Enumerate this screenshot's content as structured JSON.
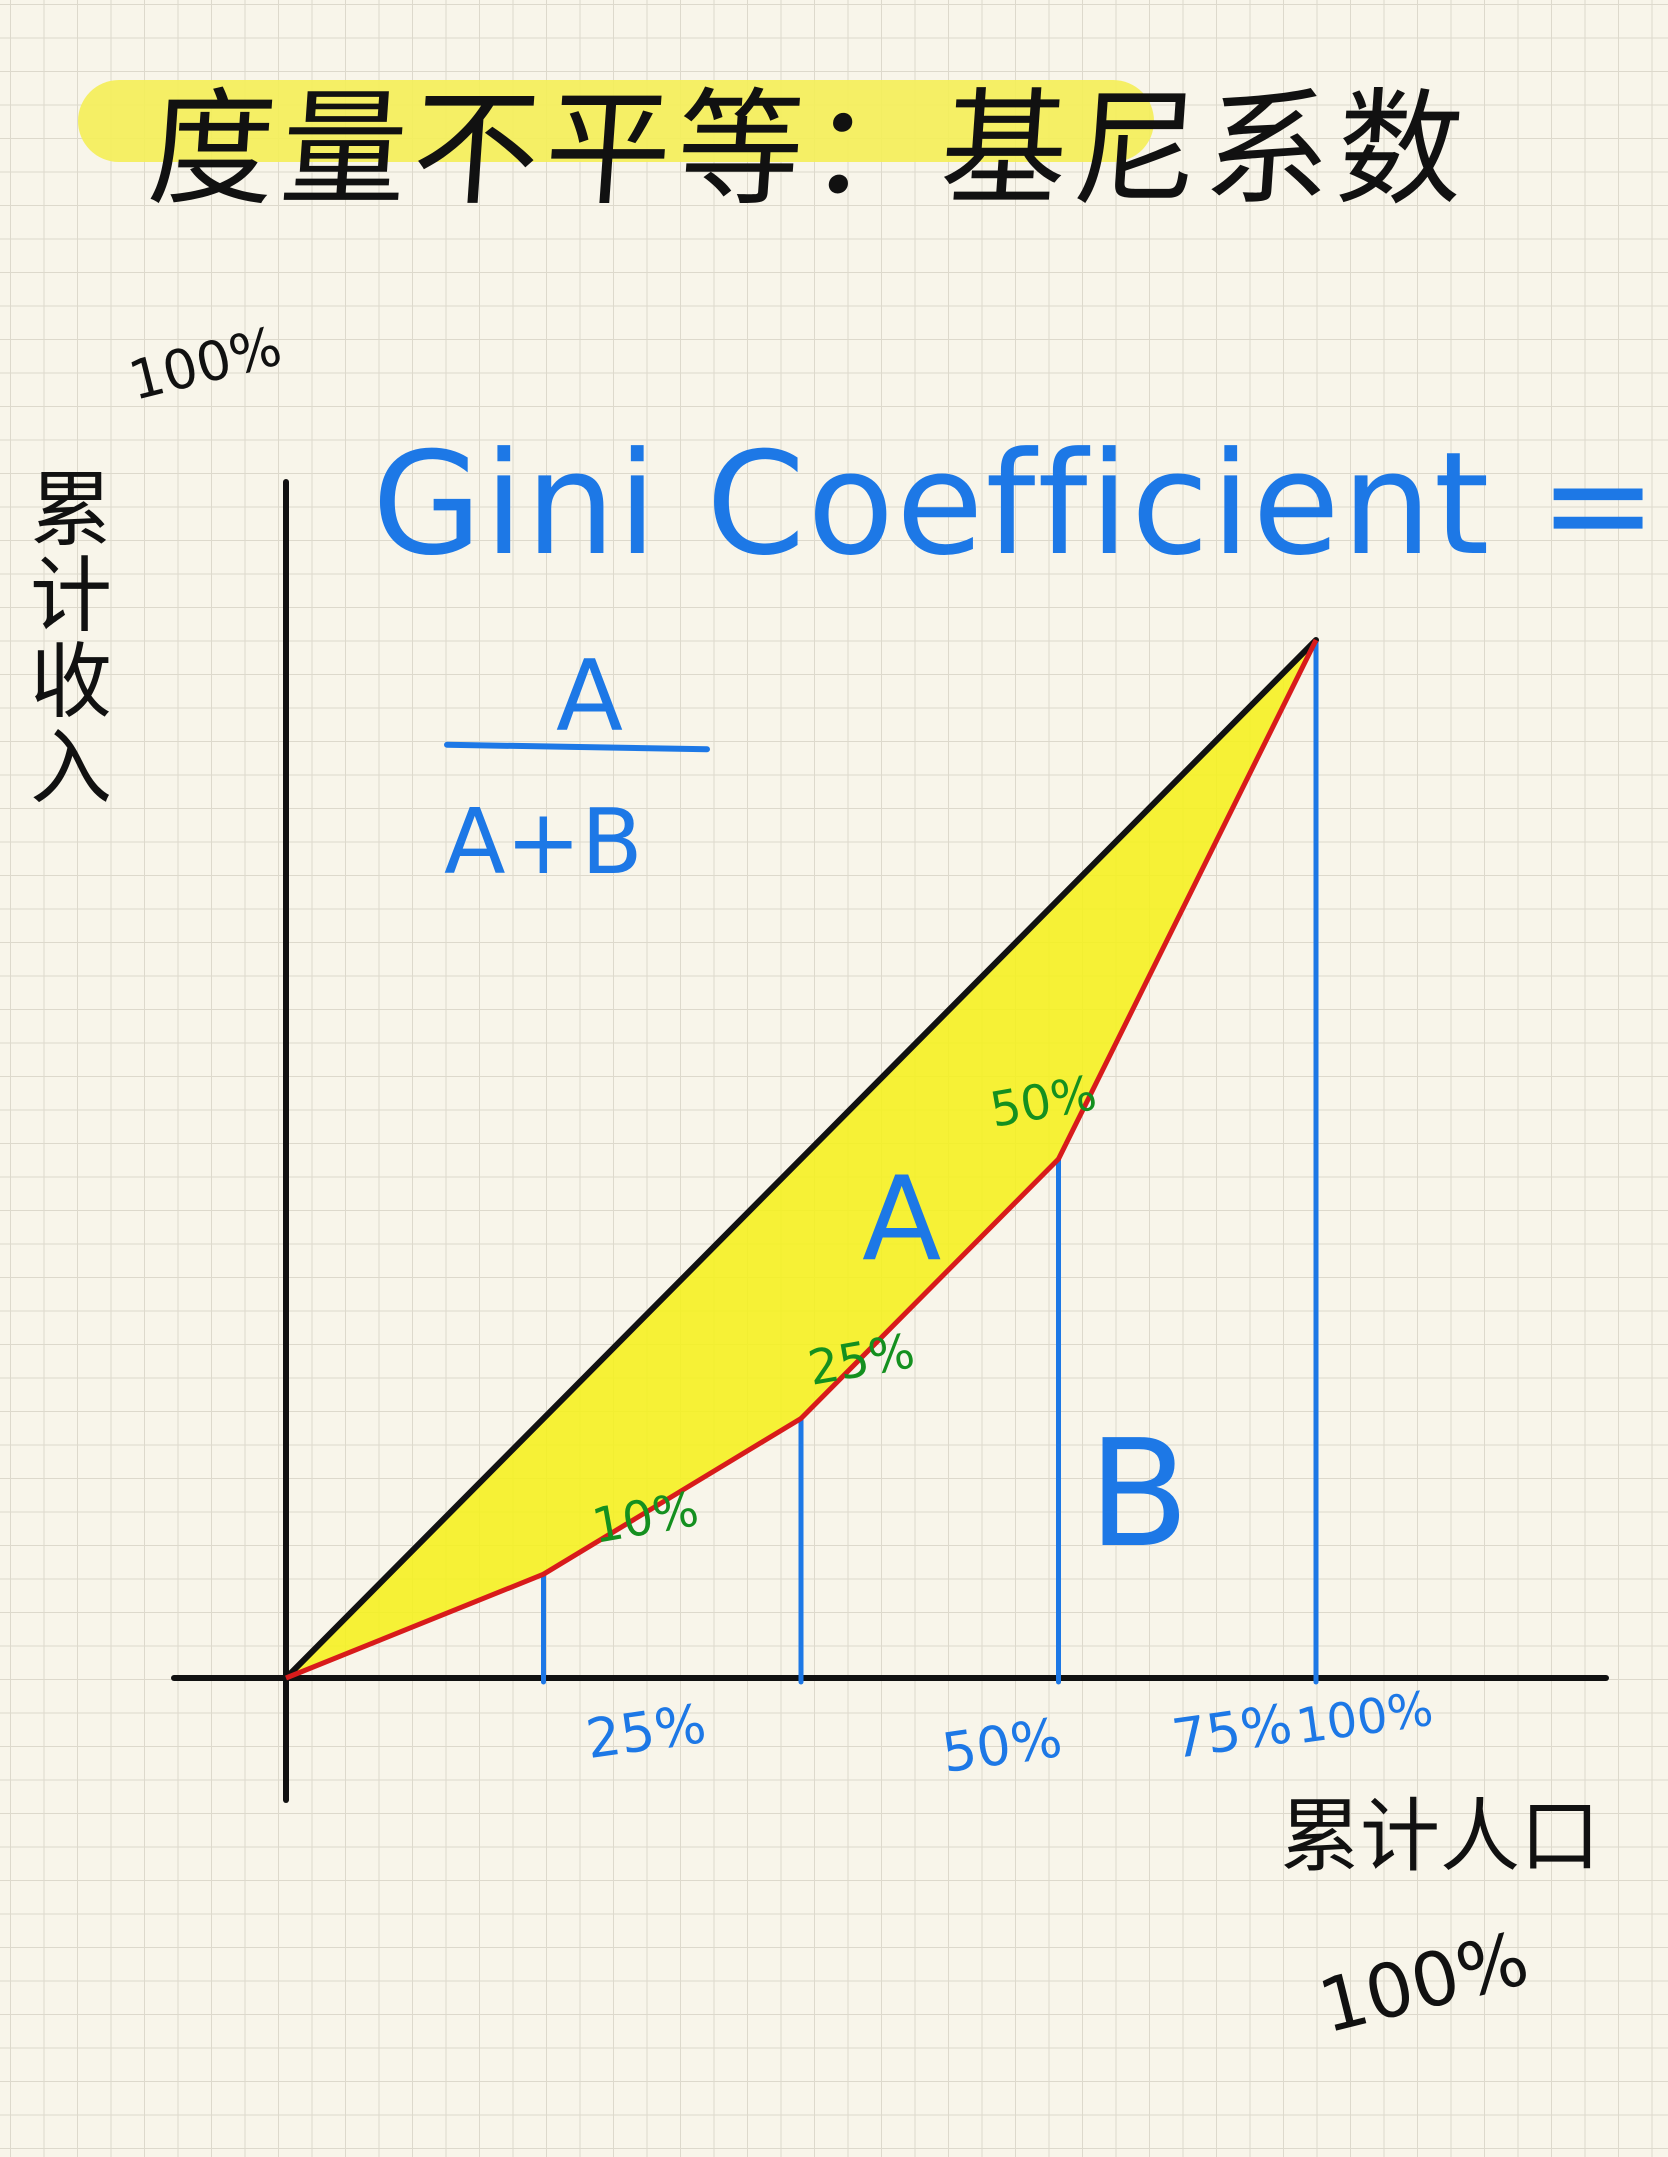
{
  "title": "度量不平等：基尼系数",
  "formula": {
    "title": "Gini Coefficient =",
    "numerator": "A",
    "denominator": "A+B"
  },
  "axes": {
    "y_top_label": "100%",
    "y_label": "累计收入",
    "x_label": "累计人口",
    "x_right_label": "100%"
  },
  "areas": {
    "a_label": "A",
    "b_label": "B"
  },
  "chart_data": {
    "type": "line",
    "x": [
      0,
      25,
      50,
      75,
      100
    ],
    "x_tick_labels": [
      "25%",
      "50%",
      "75%",
      "100%"
    ],
    "series": [
      {
        "values": [
          0,
          10,
          25,
          50,
          100
        ]
      },
      {
        "values": [
          0,
          25,
          50,
          75,
          100
        ]
      }
    ],
    "point_labels": [
      "10%",
      "25%",
      "50%"
    ],
    "colors": {
      "lorenz": "#d81b1b",
      "equality": "#111111",
      "fill": "#f5f01c",
      "drop_lines": "#1d78e6",
      "point_labels": "#14901f"
    }
  }
}
